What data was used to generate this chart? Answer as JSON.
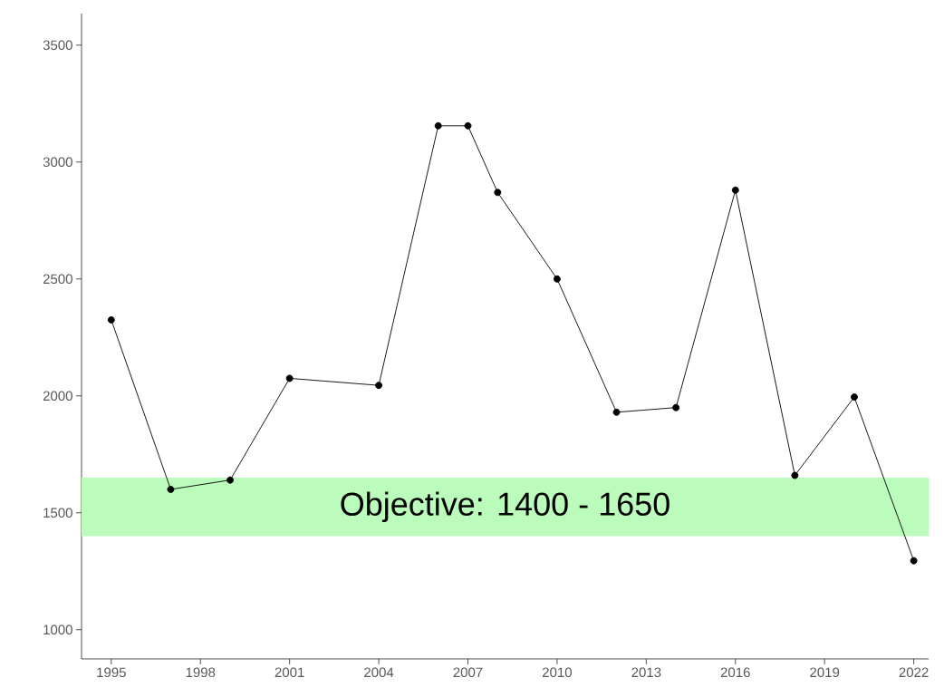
{
  "chart_data": {
    "type": "line",
    "x": [
      1995,
      1997,
      1999,
      2001,
      2004,
      2006,
      2007,
      2008,
      2010,
      2012,
      2014,
      2016,
      2018,
      2020,
      2022
    ],
    "series": [
      {
        "color": "#000000",
        "values": [
          2325,
          1600,
          1640,
          2075,
          2045,
          3155,
          3155,
          2870,
          2500,
          1930,
          1950,
          2880,
          1660,
          1995,
          1295
        ]
      }
    ],
    "xlim": [
      1994,
      2022.5
    ],
    "ylim": [
      875,
      3635
    ],
    "xticks": [
      1995,
      1998,
      2001,
      2004,
      2007,
      2010,
      2013,
      2016,
      2019,
      2022
    ],
    "yticks": [
      1000,
      1500,
      2000,
      2500,
      3000,
      3500
    ],
    "bands": [
      {
        "axis": "y",
        "from": 1400,
        "to": 1650,
        "label": "Objective: 1400 - 1650",
        "color": "#bbfbbb"
      }
    ],
    "marker": "circle",
    "line_style": "solid",
    "grid": false,
    "legend": false
  }
}
